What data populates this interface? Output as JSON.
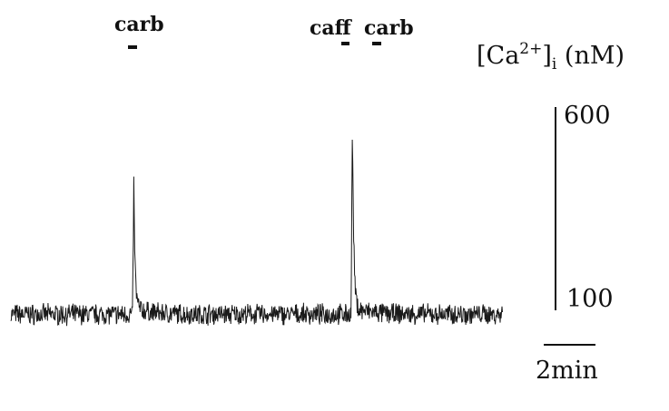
{
  "chart_data": {
    "type": "line",
    "ylabel": {
      "base": "[Ca",
      "sup": "2+",
      "mid": "]",
      "sub": "i",
      "unit": " (nM)"
    },
    "y_scale_bar": {
      "top_label": "600",
      "bottom_label": "100",
      "top_value": 600,
      "bottom_value": 100
    },
    "x_scale_bar": {
      "label": "2min",
      "minutes": 2
    },
    "stimuli": [
      {
        "label": "carb",
        "time_min": 4.6
      },
      {
        "label": "caff",
        "time_min": 13.0
      },
      {
        "label": "carb",
        "time_min": 14.3
      }
    ],
    "baseline_nM": 90,
    "noise_nM": 22,
    "duration_min": 19.0,
    "peaks": [
      {
        "time_min": 4.75,
        "value_nM": 390
      },
      {
        "time_min": 13.2,
        "value_nM": 560
      }
    ]
  }
}
